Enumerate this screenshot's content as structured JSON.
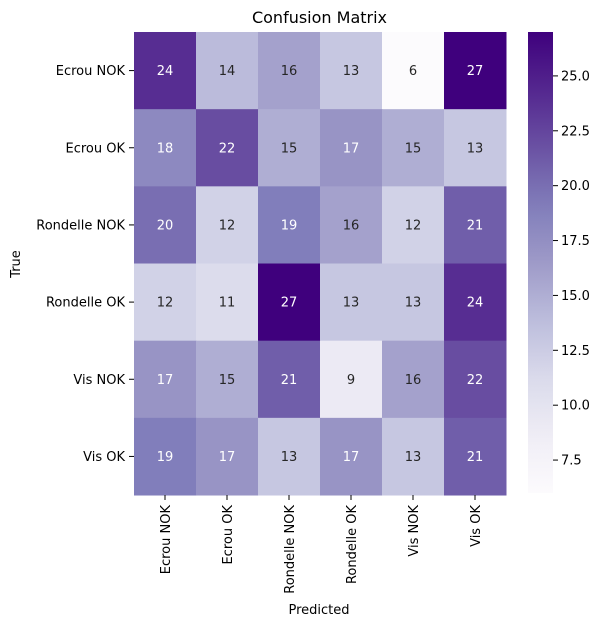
{
  "chart_data": {
    "type": "heatmap",
    "title": "Confusion Matrix",
    "xlabel": "Predicted",
    "ylabel": "True",
    "x_categories": [
      "Ecrou NOK",
      "Ecrou OK",
      "Rondelle NOK",
      "Rondelle OK",
      "Vis NOK",
      "Vis OK"
    ],
    "y_categories": [
      "Ecrou NOK",
      "Ecrou OK",
      "Rondelle NOK",
      "Rondelle OK",
      "Vis NOK",
      "Vis OK"
    ],
    "values": [
      [
        24,
        14,
        16,
        13,
        6,
        27
      ],
      [
        18,
        22,
        15,
        17,
        15,
        13
      ],
      [
        20,
        12,
        19,
        16,
        12,
        21
      ],
      [
        12,
        11,
        27,
        13,
        13,
        24
      ],
      [
        17,
        15,
        21,
        9,
        16,
        22
      ],
      [
        19,
        17,
        13,
        17,
        13,
        21
      ]
    ],
    "colormap": "Purples",
    "colorbar": {
      "min": 6,
      "max": 27,
      "ticks": [
        "7.5",
        "10.0",
        "12.5",
        "15.0",
        "17.5",
        "20.0",
        "22.5",
        "25.0"
      ]
    },
    "colors": {
      "low": "#fcfbfd",
      "high": "#3f007d"
    }
  }
}
